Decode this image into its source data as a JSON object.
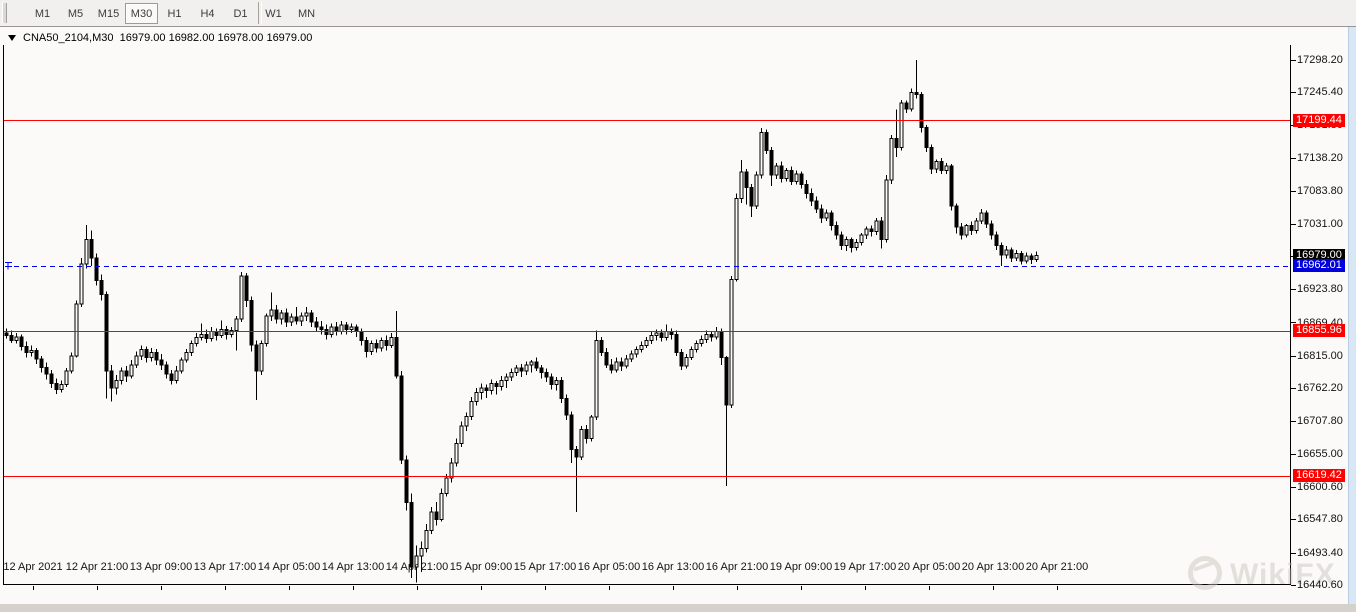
{
  "toolbar": {
    "timeframes": [
      {
        "label": "M1",
        "active": false
      },
      {
        "label": "M5",
        "active": false
      },
      {
        "label": "M15",
        "active": false
      },
      {
        "label": "M30",
        "active": true
      },
      {
        "label": "H1",
        "active": false
      },
      {
        "label": "H4",
        "active": false
      },
      {
        "label": "D1",
        "active": false
      },
      {
        "label": "W1",
        "active": false
      },
      {
        "label": "MN",
        "active": false
      }
    ]
  },
  "chart": {
    "symbol": "CNA50_2104,M30",
    "ohlc_text": "16979.00 16982.00 16978.00 16979.00",
    "price_axis_labels": [
      {
        "text": "17298.20",
        "price": 17298.2
      },
      {
        "text": "17245.40",
        "price": 17245.4
      },
      {
        "text": "17191.80",
        "price": 17191.8
      },
      {
        "text": "17138.20",
        "price": 17138.2
      },
      {
        "text": "17083.80",
        "price": 17083.8
      },
      {
        "text": "17031.00",
        "price": 17031.0
      },
      {
        "text": "16977.40",
        "price": 16977.4
      },
      {
        "text": "16923.80",
        "price": 16923.8
      },
      {
        "text": "16869.40",
        "price": 16869.4
      },
      {
        "text": "16815.00",
        "price": 16815.0
      },
      {
        "text": "16762.20",
        "price": 16762.2
      },
      {
        "text": "16707.80",
        "price": 16707.8
      },
      {
        "text": "16655.00",
        "price": 16655.0
      },
      {
        "text": "16600.60",
        "price": 16600.6
      },
      {
        "text": "16547.80",
        "price": 16547.8
      },
      {
        "text": "16493.40",
        "price": 16493.4
      },
      {
        "text": "16440.60",
        "price": 16440.6
      }
    ],
    "time_axis_labels": [
      "12 Apr 2021",
      "12 Apr 21:00",
      "13 Apr 09:00",
      "13 Apr 17:00",
      "14 Apr 05:00",
      "14 Apr 13:00",
      "14 Apr 21:00",
      "15 Apr 09:00",
      "15 Apr 17:00",
      "16 Apr 05:00",
      "16 Apr 13:00",
      "16 Apr 21:00",
      "19 Apr 09:00",
      "19 Apr 17:00",
      "20 Apr 05:00",
      "20 Apr 13:00",
      "20 Apr 21:00"
    ],
    "hlines": [
      {
        "label": "17199.44",
        "price": 17199.44,
        "color": "#ff0000"
      },
      {
        "label": "16855.96",
        "price": 16855.96,
        "color": "#ff0000"
      },
      {
        "label": "16619.42",
        "price": 16619.42,
        "color": "#ff0000"
      }
    ],
    "price_markers": [
      {
        "label": "16979.00",
        "price": 16979.0,
        "bg": "#000000",
        "line": false
      },
      {
        "label": "16962.01",
        "price": 16962.01,
        "bg": "#0000dd",
        "line": true,
        "line_color": "#0000ff"
      }
    ]
  },
  "watermark": {
    "text": "WikiFX"
  },
  "chart_data": {
    "type": "candlestick",
    "symbol": "CNA50_2104",
    "timeframe": "M30",
    "axis": {
      "price_top": 17298.2,
      "price_bottom": 16440.6,
      "time_start": "12 Apr 2021",
      "time_end": "20 Apr 21:00"
    },
    "ohlc": [
      [
        16852,
        16860,
        16843,
        16848
      ],
      [
        16848,
        16856,
        16836,
        16840
      ],
      [
        16840,
        16852,
        16835,
        16846
      ],
      [
        16846,
        16850,
        16824,
        16830
      ],
      [
        16830,
        16838,
        16812,
        16820
      ],
      [
        16820,
        16832,
        16814,
        16824
      ],
      [
        16824,
        16828,
        16802,
        16810
      ],
      [
        16810,
        16815,
        16788,
        16796
      ],
      [
        16796,
        16804,
        16776,
        16785
      ],
      [
        16785,
        16792,
        16762,
        16770
      ],
      [
        16770,
        16778,
        16753,
        16760
      ],
      [
        16760,
        16775,
        16755,
        16768
      ],
      [
        16768,
        16795,
        16764,
        16790
      ],
      [
        16790,
        16820,
        16786,
        16815
      ],
      [
        16815,
        16905,
        16812,
        16900
      ],
      [
        16900,
        16975,
        16895,
        16965
      ],
      [
        16965,
        17029,
        16958,
        17005
      ],
      [
        17005,
        17020,
        16962,
        16975
      ],
      [
        16975,
        16982,
        16930,
        16938
      ],
      [
        16938,
        16948,
        16905,
        16915
      ],
      [
        16915,
        16920,
        16745,
        16790
      ],
      [
        16790,
        16800,
        16740,
        16762
      ],
      [
        16762,
        16784,
        16752,
        16775
      ],
      [
        16775,
        16796,
        16768,
        16790
      ],
      [
        16790,
        16798,
        16772,
        16782
      ],
      [
        16782,
        16808,
        16778,
        16800
      ],
      [
        16800,
        16822,
        16795,
        16815
      ],
      [
        16815,
        16832,
        16808,
        16825
      ],
      [
        16825,
        16830,
        16804,
        16812
      ],
      [
        16812,
        16828,
        16806,
        16820
      ],
      [
        16820,
        16826,
        16800,
        16808
      ],
      [
        16808,
        16818,
        16792,
        16800
      ],
      [
        16800,
        16806,
        16778,
        16785
      ],
      [
        16785,
        16792,
        16768,
        16775
      ],
      [
        16775,
        16798,
        16770,
        16790
      ],
      [
        16790,
        16812,
        16786,
        16808
      ],
      [
        16808,
        16826,
        16804,
        16820
      ],
      [
        16820,
        16840,
        16815,
        16835
      ],
      [
        16835,
        16852,
        16830,
        16845
      ],
      [
        16845,
        16868,
        16840,
        16850
      ],
      [
        16850,
        16858,
        16836,
        16843
      ],
      [
        16843,
        16862,
        16838,
        16855
      ],
      [
        16855,
        16860,
        16840,
        16848
      ],
      [
        16848,
        16873,
        16844,
        16858
      ],
      [
        16858,
        16864,
        16842,
        16850
      ],
      [
        16850,
        16862,
        16845,
        16856
      ],
      [
        16856,
        16880,
        16824,
        16875
      ],
      [
        16875,
        16952,
        16870,
        16945
      ],
      [
        16945,
        16950,
        16895,
        16905
      ],
      [
        16905,
        16912,
        16822,
        16833
      ],
      [
        16833,
        16840,
        16743,
        16790
      ],
      [
        16790,
        16840,
        16784,
        16835
      ],
      [
        16835,
        16884,
        16830,
        16880
      ],
      [
        16880,
        16918,
        16872,
        16890
      ],
      [
        16890,
        16898,
        16868,
        16875
      ],
      [
        16875,
        16890,
        16866,
        16885
      ],
      [
        16885,
        16892,
        16862,
        16870
      ],
      [
        16870,
        16884,
        16864,
        16878
      ],
      [
        16878,
        16895,
        16866,
        16872
      ],
      [
        16872,
        16886,
        16864,
        16880
      ],
      [
        16880,
        16895,
        16872,
        16885
      ],
      [
        16885,
        16890,
        16862,
        16870
      ],
      [
        16870,
        16878,
        16854,
        16862
      ],
      [
        16862,
        16872,
        16850,
        16858
      ],
      [
        16858,
        16866,
        16842,
        16850
      ],
      [
        16850,
        16868,
        16845,
        16862
      ],
      [
        16862,
        16870,
        16848,
        16855
      ],
      [
        16855,
        16872,
        16850,
        16865
      ],
      [
        16865,
        16870,
        16850,
        16858
      ],
      [
        16858,
        16868,
        16852,
        16862
      ],
      [
        16862,
        16866,
        16846,
        16855
      ],
      [
        16855,
        16860,
        16832,
        16840
      ],
      [
        16840,
        16846,
        16812,
        16822
      ],
      [
        16822,
        16840,
        16816,
        16835
      ],
      [
        16835,
        16842,
        16820,
        16828
      ],
      [
        16828,
        16845,
        16822,
        16840
      ],
      [
        16840,
        16848,
        16824,
        16832
      ],
      [
        16832,
        16852,
        16828,
        16845
      ],
      [
        16845,
        16888,
        16778,
        16782
      ],
      [
        16782,
        16790,
        16638,
        16645
      ],
      [
        16645,
        16652,
        16562,
        16575
      ],
      [
        16575,
        16590,
        16452,
        16470
      ],
      [
        16470,
        16505,
        16445,
        16488
      ],
      [
        16488,
        16512,
        16462,
        16500
      ],
      [
        16500,
        16540,
        16494,
        16530
      ],
      [
        16530,
        16568,
        16524,
        16560
      ],
      [
        16560,
        16576,
        16538,
        16548
      ],
      [
        16548,
        16598,
        16544,
        16590
      ],
      [
        16590,
        16622,
        16585,
        16615
      ],
      [
        16615,
        16648,
        16608,
        16640
      ],
      [
        16640,
        16680,
        16634,
        16672
      ],
      [
        16672,
        16708,
        16666,
        16700
      ],
      [
        16700,
        16722,
        16692,
        16716
      ],
      [
        16716,
        16748,
        16710,
        16740
      ],
      [
        16740,
        16762,
        16734,
        16755
      ],
      [
        16755,
        16770,
        16744,
        16762
      ],
      [
        16762,
        16768,
        16746,
        16758
      ],
      [
        16758,
        16776,
        16752,
        16770
      ],
      [
        16770,
        16774,
        16752,
        16765
      ],
      [
        16765,
        16782,
        16758,
        16775
      ],
      [
        16775,
        16786,
        16762,
        16780
      ],
      [
        16780,
        16794,
        16774,
        16788
      ],
      [
        16788,
        16800,
        16782,
        16795
      ],
      [
        16795,
        16802,
        16780,
        16790
      ],
      [
        16790,
        16806,
        16784,
        16800
      ],
      [
        16800,
        16808,
        16788,
        16805
      ],
      [
        16805,
        16812,
        16790,
        16795
      ],
      [
        16795,
        16800,
        16778,
        16788
      ],
      [
        16788,
        16794,
        16772,
        16780
      ],
      [
        16780,
        16786,
        16760,
        16768
      ],
      [
        16768,
        16780,
        16758,
        16775
      ],
      [
        16775,
        16780,
        16738,
        16745
      ],
      [
        16745,
        16752,
        16710,
        16718
      ],
      [
        16718,
        16724,
        16640,
        16662
      ],
      [
        16662,
        16668,
        16560,
        16650
      ],
      [
        16650,
        16700,
        16645,
        16695
      ],
      [
        16695,
        16702,
        16672,
        16680
      ],
      [
        16680,
        16718,
        16675,
        16715
      ],
      [
        16715,
        16856,
        16710,
        16840
      ],
      [
        16840,
        16846,
        16815,
        16820
      ],
      [
        16820,
        16828,
        16795,
        16800
      ],
      [
        16800,
        16810,
        16786,
        16792
      ],
      [
        16792,
        16812,
        16788,
        16805
      ],
      [
        16805,
        16812,
        16790,
        16798
      ],
      [
        16798,
        16816,
        16794,
        16810
      ],
      [
        16810,
        16824,
        16805,
        16818
      ],
      [
        16818,
        16830,
        16812,
        16825
      ],
      [
        16825,
        16838,
        16820,
        16832
      ],
      [
        16832,
        16846,
        16828,
        16840
      ],
      [
        16840,
        16854,
        16834,
        16848
      ],
      [
        16848,
        16858,
        16840,
        16852
      ],
      [
        16852,
        16858,
        16838,
        16845
      ],
      [
        16845,
        16866,
        16840,
        16855
      ],
      [
        16855,
        16860,
        16842,
        16850
      ],
      [
        16850,
        16856,
        16815,
        16820
      ],
      [
        16820,
        16826,
        16792,
        16798
      ],
      [
        16798,
        16818,
        16794,
        16812
      ],
      [
        16812,
        16830,
        16808,
        16825
      ],
      [
        16825,
        16840,
        16820,
        16835
      ],
      [
        16835,
        16848,
        16830,
        16842
      ],
      [
        16842,
        16856,
        16836,
        16850
      ],
      [
        16850,
        16855,
        16838,
        16846
      ],
      [
        16846,
        16862,
        16842,
        16855
      ],
      [
        16855,
        16860,
        16800,
        16812
      ],
      [
        16812,
        16815,
        16602,
        16735
      ],
      [
        16735,
        16945,
        16730,
        16940
      ],
      [
        16940,
        17080,
        16936,
        17072
      ],
      [
        17072,
        17135,
        17065,
        17115
      ],
      [
        17115,
        17120,
        17062,
        17090
      ],
      [
        17090,
        17096,
        17042,
        17060
      ],
      [
        17060,
        17116,
        17055,
        17110
      ],
      [
        17110,
        17187,
        17105,
        17180
      ],
      [
        17180,
        17185,
        17145,
        17150
      ],
      [
        17150,
        17156,
        17092,
        17110
      ],
      [
        17110,
        17130,
        17104,
        17125
      ],
      [
        17125,
        17132,
        17098,
        17105
      ],
      [
        17105,
        17122,
        17100,
        17118
      ],
      [
        17118,
        17124,
        17094,
        17100
      ],
      [
        17100,
        17118,
        17095,
        17112
      ],
      [
        17112,
        17116,
        17088,
        17095
      ],
      [
        17095,
        17102,
        17072,
        17080
      ],
      [
        17080,
        17088,
        17060,
        17068
      ],
      [
        17068,
        17075,
        17048,
        17055
      ],
      [
        17055,
        17062,
        17032,
        17040
      ],
      [
        17040,
        17054,
        17035,
        17048
      ],
      [
        17048,
        17052,
        17020,
        17028
      ],
      [
        17028,
        17034,
        17005,
        17012
      ],
      [
        17012,
        17018,
        16988,
        16995
      ],
      [
        16995,
        17010,
        16986,
        17005
      ],
      [
        17005,
        17008,
        16984,
        16992
      ],
      [
        16992,
        17006,
        16987,
        17000
      ],
      [
        17000,
        17016,
        16995,
        17012
      ],
      [
        17012,
        17026,
        17006,
        17022
      ],
      [
        17022,
        17028,
        17010,
        17018
      ],
      [
        17018,
        17040,
        17012,
        17035
      ],
      [
        17035,
        17042,
        16990,
        17005
      ],
      [
        17005,
        17110,
        17000,
        17102
      ],
      [
        17102,
        17176,
        17096,
        17170
      ],
      [
        17170,
        17217,
        17140,
        17155
      ],
      [
        17155,
        17233,
        17150,
        17228
      ],
      [
        17228,
        17232,
        17212,
        17218
      ],
      [
        17218,
        17252,
        17214,
        17245
      ],
      [
        17245,
        17298,
        17235,
        17242
      ],
      [
        17242,
        17246,
        17180,
        17188
      ],
      [
        17188,
        17192,
        17148,
        17155
      ],
      [
        17155,
        17160,
        17112,
        17120
      ],
      [
        17120,
        17136,
        17114,
        17132
      ],
      [
        17132,
        17138,
        17112,
        17118
      ],
      [
        17118,
        17130,
        17112,
        17125
      ],
      [
        17125,
        17128,
        17052,
        17060
      ],
      [
        17060,
        17064,
        17015,
        17025
      ],
      [
        17025,
        17032,
        17005,
        17012
      ],
      [
        17012,
        17030,
        17008,
        17028
      ],
      [
        17028,
        17034,
        17012,
        17020
      ],
      [
        17020,
        17040,
        17015,
        17035
      ],
      [
        17035,
        17055,
        17030,
        17048
      ],
      [
        17048,
        17052,
        17024,
        17030
      ],
      [
        17030,
        17036,
        17005,
        17012
      ],
      [
        17012,
        17018,
        16988,
        16995
      ],
      [
        16995,
        17000,
        16962,
        16980
      ],
      [
        16980,
        16994,
        16974,
        16988
      ],
      [
        16988,
        16992,
        16968,
        16975
      ],
      [
        16975,
        16988,
        16970,
        16982
      ],
      [
        16982,
        16986,
        16964,
        16970
      ],
      [
        16970,
        16984,
        16966,
        16978
      ],
      [
        16978,
        16982,
        16965,
        16972
      ],
      [
        16972,
        16985,
        16968,
        16979
      ]
    ]
  }
}
